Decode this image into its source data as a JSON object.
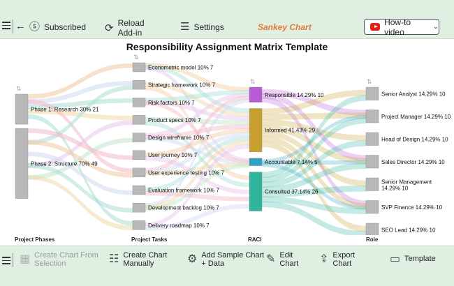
{
  "toolbar": {
    "subscribed": "Subscribed",
    "reload": "Reload\nAdd-in",
    "settings": "Settings",
    "chart_name": "Sankey Chart",
    "howto": "How-to video"
  },
  "bottom_toolbar": {
    "create_from_selection": "Create Chart From\nSelection",
    "create_manually": "Create Chart\nManually",
    "add_sample": "Add Sample Chart\n+ Data",
    "edit": "Edit\nChart",
    "export": "Export\nChart",
    "template": "Template"
  },
  "colors": {
    "toolbar_bg": "#dff0e3",
    "accent_orange": "#e8783a",
    "node_gray": "#b8b8b8",
    "responsible": "#b85bd6",
    "informed": "#c7a030",
    "accountable": "#2fa3c7",
    "consulted": "#2fb59b"
  },
  "chart_data": {
    "type": "sankey",
    "title": "Responsibility Assignment Matrix Template",
    "columns": [
      "Project Phases",
      "Project Tasks",
      "RACI",
      "Role"
    ],
    "nodes": {
      "Project Phases": [
        {
          "label": "Phase 1: Research 30% 21",
          "value": 21
        },
        {
          "label": "Phase 2: Structure 70% 49",
          "value": 49
        }
      ],
      "Project Tasks": [
        {
          "label": "Econometric model 10% 7",
          "value": 7
        },
        {
          "label": "Strategic framework 10% 7",
          "value": 7
        },
        {
          "label": "Risk factors 10% 7",
          "value": 7
        },
        {
          "label": "Product specs 10% 7",
          "value": 7
        },
        {
          "label": "Design wireframe 10% 7",
          "value": 7
        },
        {
          "label": "User journey 10% 7",
          "value": 7
        },
        {
          "label": "User experience testing 10% 7",
          "value": 7
        },
        {
          "label": "Evaluation framework 10% 7",
          "value": 7
        },
        {
          "label": "Development backlog 10% 7",
          "value": 7
        },
        {
          "label": "Delivery roadmap 10% 7",
          "value": 7
        }
      ],
      "RACI": [
        {
          "label": "Responsible 14.29% 10",
          "value": 10
        },
        {
          "label": "Informed 41.43% 29",
          "value": 29
        },
        {
          "label": "Accountable 7.14% 5",
          "value": 5
        },
        {
          "label": "Consulted 37.14% 26",
          "value": 26
        }
      ],
      "Role": [
        {
          "label": "Senior Analyst 14.29% 10",
          "value": 10
        },
        {
          "label": "Project Manager 14.29% 10",
          "value": 10
        },
        {
          "label": "Head of Design 14.29% 10",
          "value": 10
        },
        {
          "label": "Sales Director 14.29% 10",
          "value": 10
        },
        {
          "label": "Senior Management 14.29% 10",
          "value": 10
        },
        {
          "label": "SVP Finance 14.29% 10",
          "value": 10
        },
        {
          "label": "SEO Lead 14.29% 10",
          "value": 10
        }
      ]
    }
  }
}
